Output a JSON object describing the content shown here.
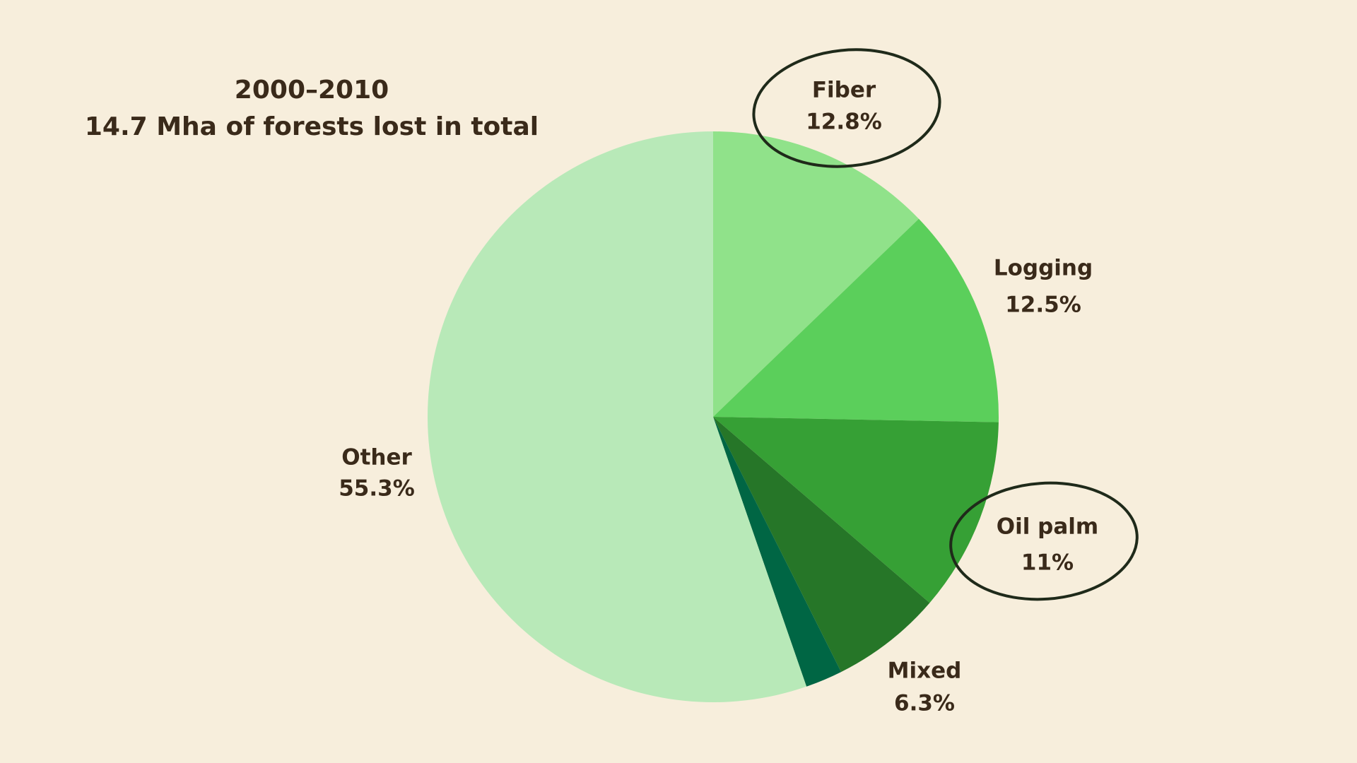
{
  "chart_data": {
    "type": "pie",
    "title": "2000–2010",
    "subtitle": "14.7 Mha of forests lost in total",
    "categories": [
      "Fiber",
      "Logging",
      "Oil palm",
      "Mixed",
      null,
      "Other"
    ],
    "values": [
      12.8,
      12.5,
      11,
      6.3,
      2.1,
      55.3
    ],
    "value_labels": [
      "12.8%",
      "12.5%",
      "11%",
      "6.3%",
      null,
      "55.3%"
    ],
    "colors": [
      "#90e28a",
      "#5bcf5b",
      "#36a035",
      "#267628",
      "#006644",
      "#b8e9b8"
    ]
  }
}
